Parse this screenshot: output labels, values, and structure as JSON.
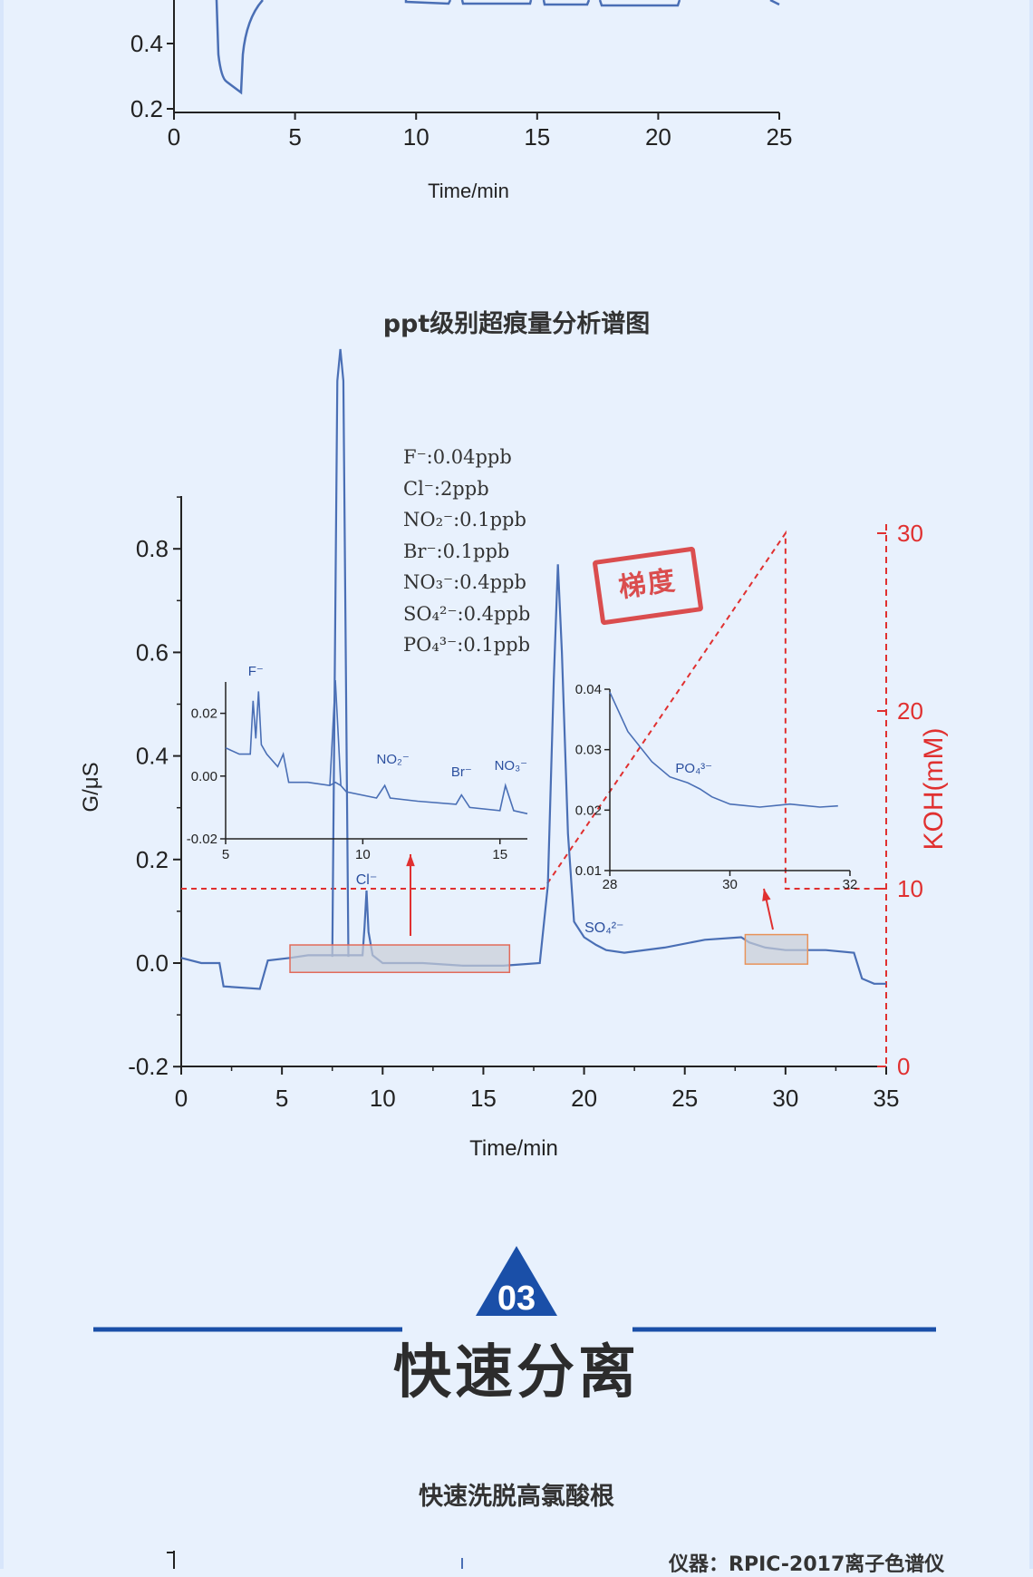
{
  "top_chart": {
    "xlabel": "Time/min",
    "x_ticks": [
      "0",
      "5",
      "10",
      "15",
      "20",
      "25"
    ],
    "y_ticks": [
      "0.4",
      "0.2"
    ]
  },
  "main_chart_title": "ppt级别超痕量分析谱图",
  "chart_data": {
    "type": "line",
    "title": "ppt级别超痕量分析谱图",
    "xlabel": "Time/min",
    "ylabel": "G/μS",
    "y2label": "KOH(mM)",
    "xlim": [
      0,
      35
    ],
    "ylim": [
      -0.2,
      0.9
    ],
    "y2lim": [
      0,
      30
    ],
    "x_ticks": [
      "0",
      "5",
      "10",
      "15",
      "20",
      "25",
      "30",
      "35"
    ],
    "y_ticks": [
      "0.8",
      "0.6",
      "0.4",
      "0.2",
      "0.0",
      "-0.2"
    ],
    "y2_ticks": [
      "30",
      "20",
      "10",
      "0"
    ],
    "series": [
      {
        "x": [
          0,
          1,
          1.9,
          2.1,
          3.9,
          4.3,
          5.4,
          6.3,
          9.0,
          9.1,
          9.2,
          9.3,
          9.5,
          10,
          12,
          14,
          16,
          17.8,
          18.2,
          18.5,
          18.7,
          18.9,
          19.2,
          19.5,
          20,
          20.6,
          21.1,
          22,
          24,
          26,
          27.8,
          28.2,
          29,
          30,
          32,
          33.4,
          33.8,
          34.4,
          35
        ],
        "y": [
          0.01,
          0.0,
          0.0,
          -0.045,
          -0.05,
          0.005,
          0.01,
          0.015,
          0.015,
          0.07,
          0.14,
          0.06,
          0.015,
          0.0,
          0.0,
          -0.005,
          -0.005,
          0.0,
          0.15,
          0.55,
          0.77,
          0.6,
          0.25,
          0.08,
          0.05,
          0.035,
          0.025,
          0.02,
          0.03,
          0.045,
          0.05,
          0.04,
          0.03,
          0.025,
          0.025,
          0.02,
          -0.03,
          -0.04,
          -0.04
        ]
      },
      {
        "name": "KOH",
        "x": [
          0,
          18,
          30,
          30,
          35
        ],
        "y": [
          10,
          10,
          30,
          10,
          10
        ]
      }
    ],
    "peak_labels": [
      "Cl⁻",
      "SO₄²⁻"
    ],
    "inset_left": {
      "xlim": [
        5,
        16
      ],
      "ylim": [
        -0.02,
        0.03
      ],
      "x_ticks": [
        "5",
        "10",
        "15"
      ],
      "y_ticks": [
        "0.02",
        "0.00",
        "-0.02"
      ],
      "peak_labels": [
        "F⁻",
        "NO₂⁻",
        "Br⁻",
        "NO₃⁻"
      ],
      "x": [
        5,
        5.5,
        5.9,
        6.0,
        6.1,
        6.2,
        6.3,
        6.5,
        6.9,
        7.1,
        7.3,
        8.0,
        8.8,
        9.0,
        9.2,
        9.4,
        10.5,
        10.8,
        11.0,
        12.0,
        13.4,
        13.6,
        13.9,
        15.0,
        15.2,
        15.5,
        16
      ],
      "y": [
        0.009,
        0.007,
        0.007,
        0.024,
        0.012,
        0.027,
        0.01,
        0.007,
        0.003,
        0.007,
        -0.002,
        -0.002,
        -0.003,
        -0.002,
        -0.003,
        -0.005,
        -0.007,
        -0.003,
        -0.007,
        -0.008,
        -0.009,
        -0.006,
        -0.01,
        -0.011,
        -0.003,
        -0.011,
        -0.012
      ]
    },
    "inset_right": {
      "xlim": [
        28,
        32
      ],
      "ylim": [
        0.01,
        0.04
      ],
      "x_ticks": [
        "28",
        "30",
        "32"
      ],
      "y_ticks": [
        "0.04",
        "0.03",
        "0.02",
        "0.01"
      ],
      "peak_labels": [
        "PO₄³⁻"
      ],
      "x": [
        28,
        28.3,
        28.7,
        29.0,
        29.3,
        29.5,
        29.7,
        30.0,
        30.5,
        31.0,
        31.5,
        31.8
      ],
      "y": [
        0.0395,
        0.033,
        0.028,
        0.0255,
        0.0245,
        0.0235,
        0.0222,
        0.021,
        0.0205,
        0.021,
        0.0205,
        0.0207
      ]
    },
    "concentrations": [
      "F⁻:0.04ppb",
      "Cl⁻:2ppb",
      "NO₂⁻:0.1ppb",
      "Br⁻:0.1ppb",
      "NO₃⁻:0.4ppb",
      "SO₄²⁻:0.4ppb",
      "PO₄³⁻:0.1ppb"
    ],
    "stamp": "梯度"
  },
  "colors": {
    "trace": "#4a6fb5",
    "gradient": "#e03030",
    "accent": "#1a4fa8",
    "stamp": "#d93c3c"
  },
  "section": {
    "number": "03",
    "heading": "快速分离",
    "subtitle": "快速洗脱高氯酸根",
    "instrument": "仪器：RPIC-2017离子色谱仪"
  }
}
